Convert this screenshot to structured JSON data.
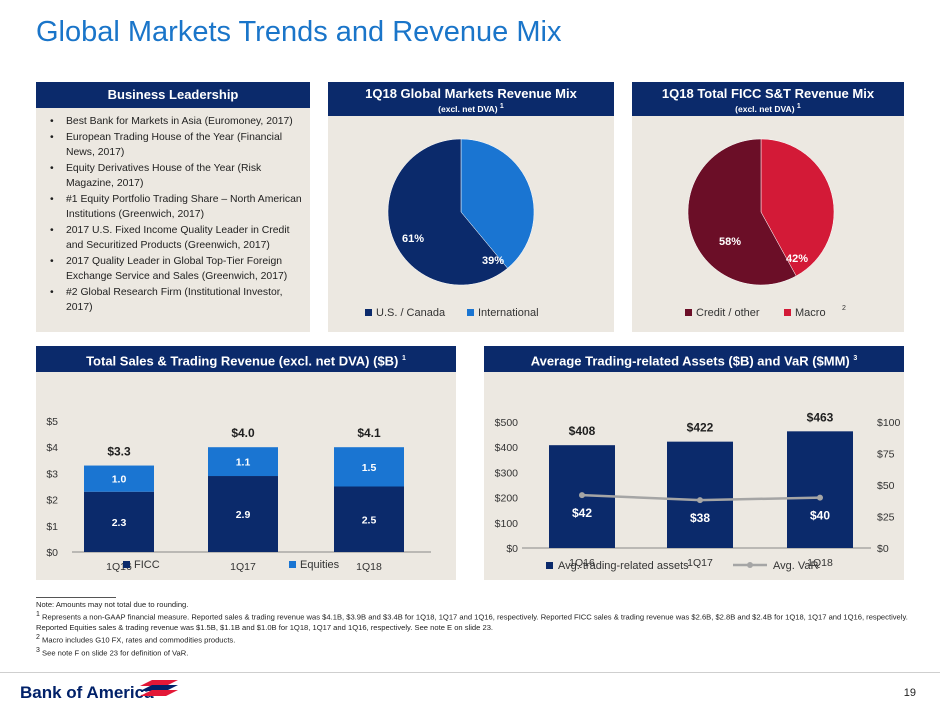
{
  "title": "Global Markets Trends and Revenue Mix",
  "leadership": {
    "header": "Business Leadership",
    "items": [
      "Best Bank for Markets in Asia (Euromoney, 2017)",
      "European Trading House of the Year (Financial News, 2017)",
      "Equity Derivatives House of the Year (Risk Magazine, 2017)",
      "#1 Equity Portfolio Trading Share – North American Institutions (Greenwich, 2017)",
      "2017 U.S. Fixed Income Quality Leader in Credit and Securitized Products (Greenwich, 2017)",
      "2017 Quality Leader in Global Top-Tier Foreign Exchange Service and Sales (Greenwich, 2017)",
      "#2 Global Research Firm (Institutional Investor, 2017)"
    ]
  },
  "mix": {
    "header": "1Q18 Global Markets Revenue Mix",
    "sub": "(excl. net DVA)",
    "sup": "1",
    "legend": [
      "U.S. / Canada",
      "International"
    ]
  },
  "ficc_mix": {
    "header": "1Q18 Total FICC S&T Revenue Mix",
    "sub": "(excl. net DVA)",
    "sup": "1",
    "legend": [
      "Credit / other",
      "Macro"
    ],
    "legend_sup": "2"
  },
  "sales": {
    "header": "Total Sales & Trading Revenue (excl. net DVA) ($B)",
    "sup": "1"
  },
  "assets": {
    "header": "Average Trading-related Assets ($B) and VaR ($MM)",
    "sup": "3"
  },
  "chart_data": [
    {
      "type": "pie",
      "title": "1Q18 Global Markets Revenue Mix",
      "labels": [
        "U.S. / Canada",
        "International"
      ],
      "values": [
        61,
        39
      ],
      "value_labels": [
        "61%",
        "39%"
      ],
      "colors": [
        "#0b2a6b",
        "#1a75d2"
      ]
    },
    {
      "type": "pie",
      "title": "1Q18 Total FICC S&T Revenue Mix",
      "labels": [
        "Credit / other",
        "Macro"
      ],
      "values": [
        58,
        42
      ],
      "value_labels": [
        "58%",
        "42%"
      ],
      "colors": [
        "#6b0e27",
        "#d31a37"
      ]
    },
    {
      "type": "bar",
      "stacked": true,
      "categories": [
        "1Q16",
        "1Q17",
        "1Q18"
      ],
      "series": [
        {
          "name": "FICC",
          "values": [
            2.3,
            2.9,
            2.5
          ],
          "labels": [
            "2.3",
            "2.9",
            "2.5"
          ],
          "color": "#0b2a6b"
        },
        {
          "name": "Equities",
          "values": [
            1.0,
            1.1,
            1.5
          ],
          "labels": [
            "1.0",
            "1.1",
            "1.5"
          ],
          "color": "#1a75d2"
        }
      ],
      "totals": [
        "$3.3",
        "$4.0",
        "$4.1"
      ],
      "ylim": [
        0,
        5
      ],
      "yticks": [
        "$0",
        "$1",
        "$2",
        "$3",
        "$4",
        "$5"
      ],
      "grid": false,
      "legend": "bottom"
    },
    {
      "type": "bar",
      "categories": [
        "1Q16",
        "1Q17",
        "1Q18"
      ],
      "series": [
        {
          "name": "Avg. trading-related assets",
          "values": [
            408,
            422,
            463
          ],
          "labels": [
            "$408",
            "$422",
            "$463"
          ],
          "color": "#0b2a6b",
          "axis": "left"
        },
        {
          "name": "Avg. VaR",
          "values": [
            42,
            38,
            40
          ],
          "labels": [
            "$42",
            "$38",
            "$40"
          ],
          "color": "#a5a5a5",
          "type": "line",
          "axis": "right"
        }
      ],
      "ylim": [
        0,
        500
      ],
      "yticks": [
        "$0",
        "$100",
        "$200",
        "$300",
        "$400",
        "$500"
      ],
      "y2lim": [
        0,
        100
      ],
      "y2ticks": [
        "$0",
        "$25",
        "$50",
        "$75",
        "$100"
      ],
      "grid": false,
      "legend": "bottom"
    }
  ],
  "footnotes": {
    "note": "Note: Amounts may not total due to rounding.",
    "n1_sup": "1",
    "n1": "Represents a non-GAAP financial measure. Reported sales & trading revenue was $4.1B, $3.9B and $3.4B for 1Q18, 1Q17 and 1Q16, respectively. Reported FICC sales & trading revenue was $2.6B, $2.8B and $2.4B for 1Q18, 1Q17 and 1Q16, respectively. Reported Equities sales & trading revenue was $1.5B, $1.1B and $1.0B for 1Q18, 1Q17 and 1Q16, respectively. See note E on slide 23.",
    "n2_sup": "2",
    "n2": "Macro includes G10 FX, rates and commodities products.",
    "n3_sup": "3",
    "n3": "See note F on slide 23 for definition of VaR."
  },
  "footer": {
    "logo": "Bank of America",
    "page": "19"
  }
}
